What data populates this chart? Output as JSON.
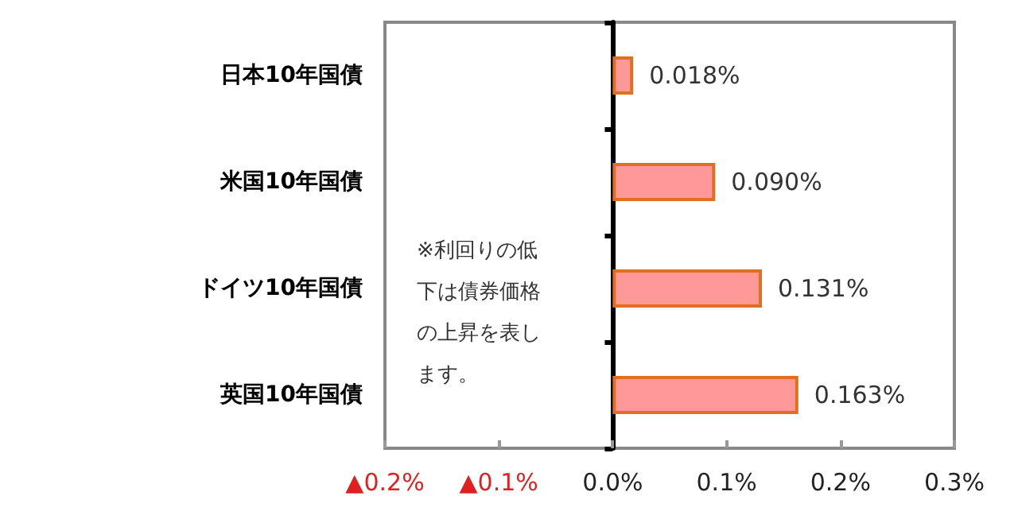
{
  "chart_data": {
    "type": "bar",
    "orientation": "horizontal",
    "categories": [
      "日本10年国債",
      "米国10年国債",
      "ドイツ10年国債",
      "英国10年国債"
    ],
    "values": [
      0.018,
      0.09,
      0.131,
      0.163
    ],
    "value_labels": [
      "0.018%",
      "0.090%",
      "0.131%",
      "0.163%"
    ],
    "color": "#ff9999",
    "xlim": [
      -0.2,
      0.3
    ],
    "xticks": [
      {
        "value": -0.2,
        "label": "▲0.2%"
      },
      {
        "value": -0.1,
        "label": "▲0.1%"
      },
      {
        "value": 0,
        "label": "0.0%"
      },
      {
        "value": 0.1,
        "label": "0.1%"
      },
      {
        "value": 0.2,
        "label": "0.2%"
      },
      {
        "value": 0.3,
        "label": "0.3%"
      }
    ],
    "annotations": [
      "※利回りの低下は債券価格の上昇を表します。"
    ]
  }
}
